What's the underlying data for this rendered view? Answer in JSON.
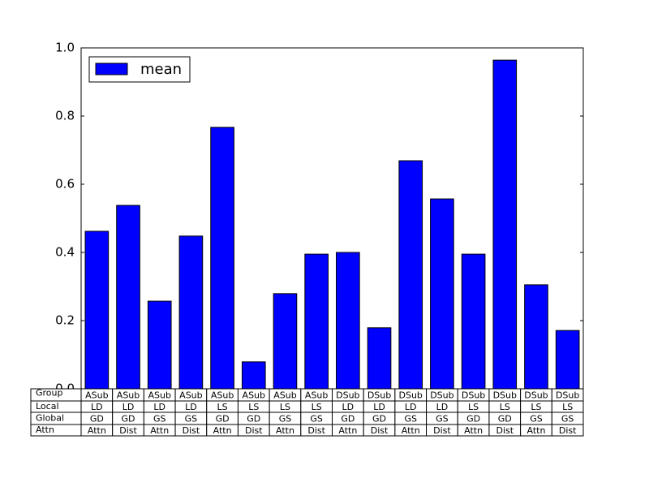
{
  "chart_data": {
    "type": "bar",
    "series": [
      {
        "name": "mean",
        "color": "#0000ff",
        "values": [
          0.462,
          0.538,
          0.257,
          0.448,
          0.767,
          0.079,
          0.279,
          0.395,
          0.4,
          0.179,
          0.669,
          0.557,
          0.395,
          0.964,
          0.305,
          0.171
        ]
      }
    ],
    "ylim": [
      0,
      1
    ],
    "yticks": [
      {
        "value": 0,
        "label": "0.0"
      },
      0.2,
      0.4,
      0.6,
      0.8,
      {
        "value": 1,
        "label": "1.0"
      }
    ],
    "legend": "upper left",
    "table": {
      "row_labels": [
        "Group",
        "Local",
        "Global",
        "Attn"
      ],
      "cells": [
        [
          "ASub",
          "ASub",
          "ASub",
          "ASub",
          "ASub",
          "ASub",
          "ASub",
          "ASub",
          "DSub",
          "DSub",
          "DSub",
          "DSub",
          "DSub",
          "DSub",
          "DSub",
          "DSub"
        ],
        [
          "LD",
          "LD",
          "LD",
          "LD",
          "LS",
          "LS",
          "LS",
          "LS",
          "LD",
          "LD",
          "LD",
          "LD",
          "LS",
          "LS",
          "LS",
          "LS"
        ],
        [
          "GD",
          "GD",
          "GS",
          "GS",
          "GD",
          "GD",
          "GS",
          "GS",
          "GD",
          "GD",
          "GS",
          "GS",
          "GD",
          "GD",
          "GS",
          "GS"
        ],
        [
          "Attn",
          "Dist",
          "Attn",
          "Dist",
          "Attn",
          "Dist",
          "Attn",
          "Dist",
          "Attn",
          "Dist",
          "Attn",
          "Dist",
          "Attn",
          "Dist",
          "Attn",
          "Dist"
        ]
      ]
    }
  }
}
